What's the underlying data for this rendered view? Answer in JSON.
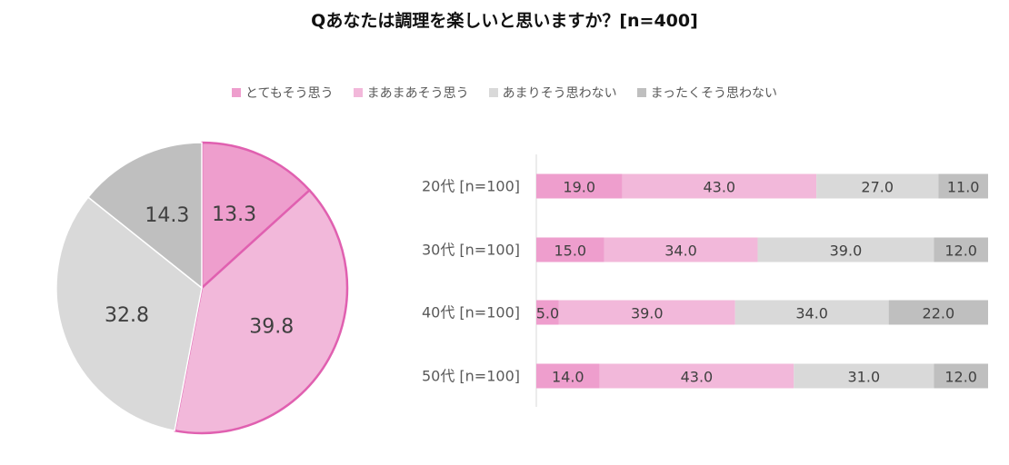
{
  "chart_data": [
    {
      "type": "pie",
      "title": "Qあなたは調理を楽しいと思いますか？[n=400]",
      "legend_position": "top",
      "categories": [
        "とてもそう思う",
        "まあまあそう思う",
        "あまりそう思わない",
        "まったくそう思わない"
      ],
      "values": [
        13.3,
        39.8,
        32.8,
        14.3
      ],
      "labels": [
        "13.3",
        "39.8",
        "32.8",
        "14.3"
      ],
      "colors": [
        "#ee9ecd",
        "#f2b8da",
        "#d9d9d9",
        "#bfbfbf"
      ],
      "highlight_stroke": "#e060b0"
    },
    {
      "type": "bar",
      "orientation": "horizontal",
      "stacked": "100%",
      "categories": [
        "20代 [n=100]",
        "30代 [n=100]",
        "40代 [n=100]",
        "50代 [n=100]"
      ],
      "xlim": [
        0,
        100
      ],
      "series": [
        {
          "name": "とてもそう思う",
          "values": [
            19.0,
            15.0,
            5.0,
            14.0
          ],
          "labels": [
            "19.0",
            "15.0",
            "5.0",
            "14.0"
          ]
        },
        {
          "name": "まあまあそう思う",
          "values": [
            43.0,
            34.0,
            39.0,
            43.0
          ],
          "labels": [
            "43.0",
            "34.0",
            "39.0",
            "43.0"
          ]
        },
        {
          "name": "あまりそう思わない",
          "values": [
            27.0,
            39.0,
            34.0,
            31.0
          ],
          "labels": [
            "27.0",
            "39.0",
            "34.0",
            "31.0"
          ]
        },
        {
          "name": "まったくそう思わない",
          "values": [
            11.0,
            12.0,
            22.0,
            12.0
          ],
          "labels": [
            "11.0",
            "12.0",
            "22.0",
            "12.0"
          ]
        }
      ]
    }
  ]
}
